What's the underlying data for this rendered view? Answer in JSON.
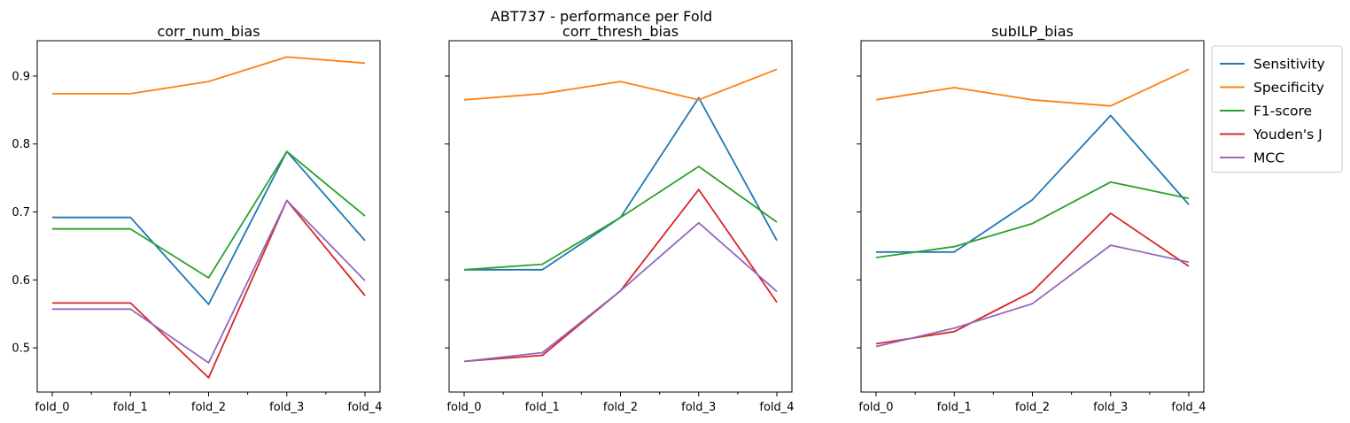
{
  "suptitle": "ABT737 - performance per Fold",
  "colors": {
    "Sensitivity": "#1f77b4",
    "Specificity": "#ff7f0e",
    "F1-score": "#2ca02c",
    "Youden's J": "#d62728",
    "MCC": "#9467bd"
  },
  "legend": {
    "placement": "outside-right-top",
    "entries": [
      "Sensitivity",
      "Specificity",
      "F1-score",
      "Youden's J",
      "MCC"
    ]
  },
  "chart_data": [
    {
      "type": "line",
      "title": "corr_num_bias",
      "categories": [
        "fold_0",
        "fold_1",
        "fold_2",
        "fold_3",
        "fold_4"
      ],
      "ylim": [
        0.435,
        0.952
      ],
      "yticks": [
        "0.5",
        "0.6",
        "0.7",
        "0.8",
        "0.9"
      ],
      "sharey": true,
      "series": [
        {
          "name": "Sensitivity",
          "values": [
            0.692,
            0.692,
            0.564,
            0.789,
            0.658
          ]
        },
        {
          "name": "Specificity",
          "values": [
            0.874,
            0.874,
            0.892,
            0.928,
            0.919
          ]
        },
        {
          "name": "F1-score",
          "values": [
            0.675,
            0.675,
            0.603,
            0.789,
            0.694
          ]
        },
        {
          "name": "Youden's J",
          "values": [
            0.566,
            0.566,
            0.456,
            0.717,
            0.577
          ]
        },
        {
          "name": "MCC",
          "values": [
            0.557,
            0.557,
            0.478,
            0.717,
            0.599
          ]
        }
      ]
    },
    {
      "type": "line",
      "title": "corr_thresh_bias",
      "categories": [
        "fold_0",
        "fold_1",
        "fold_2",
        "fold_3",
        "fold_4"
      ],
      "ylim": [
        0.435,
        0.952
      ],
      "yticks": [
        "0.5",
        "0.6",
        "0.7",
        "0.8",
        "0.9"
      ],
      "sharey": true,
      "series": [
        {
          "name": "Sensitivity",
          "values": [
            0.615,
            0.615,
            0.692,
            0.868,
            0.658
          ]
        },
        {
          "name": "Specificity",
          "values": [
            0.865,
            0.874,
            0.892,
            0.865,
            0.91
          ]
        },
        {
          "name": "F1-score",
          "values": [
            0.615,
            0.623,
            0.692,
            0.767,
            0.685
          ]
        },
        {
          "name": "Youden's J",
          "values": [
            0.48,
            0.489,
            0.584,
            0.733,
            0.567
          ]
        },
        {
          "name": "MCC",
          "values": [
            0.48,
            0.493,
            0.584,
            0.684,
            0.583
          ]
        }
      ]
    },
    {
      "type": "line",
      "title": "subILP_bias",
      "categories": [
        "fold_0",
        "fold_1",
        "fold_2",
        "fold_3",
        "fold_4"
      ],
      "ylim": [
        0.435,
        0.952
      ],
      "yticks": [
        "0.5",
        "0.6",
        "0.7",
        "0.8",
        "0.9"
      ],
      "sharey": true,
      "series": [
        {
          "name": "Sensitivity",
          "values": [
            0.641,
            0.641,
            0.718,
            0.842,
            0.711
          ]
        },
        {
          "name": "Specificity",
          "values": [
            0.865,
            0.883,
            0.865,
            0.856,
            0.91
          ]
        },
        {
          "name": "F1-score",
          "values": [
            0.633,
            0.649,
            0.683,
            0.744,
            0.72
          ]
        },
        {
          "name": "Youden's J",
          "values": [
            0.506,
            0.524,
            0.583,
            0.698,
            0.62
          ]
        },
        {
          "name": "MCC",
          "values": [
            0.502,
            0.529,
            0.565,
            0.651,
            0.626
          ]
        }
      ]
    }
  ]
}
